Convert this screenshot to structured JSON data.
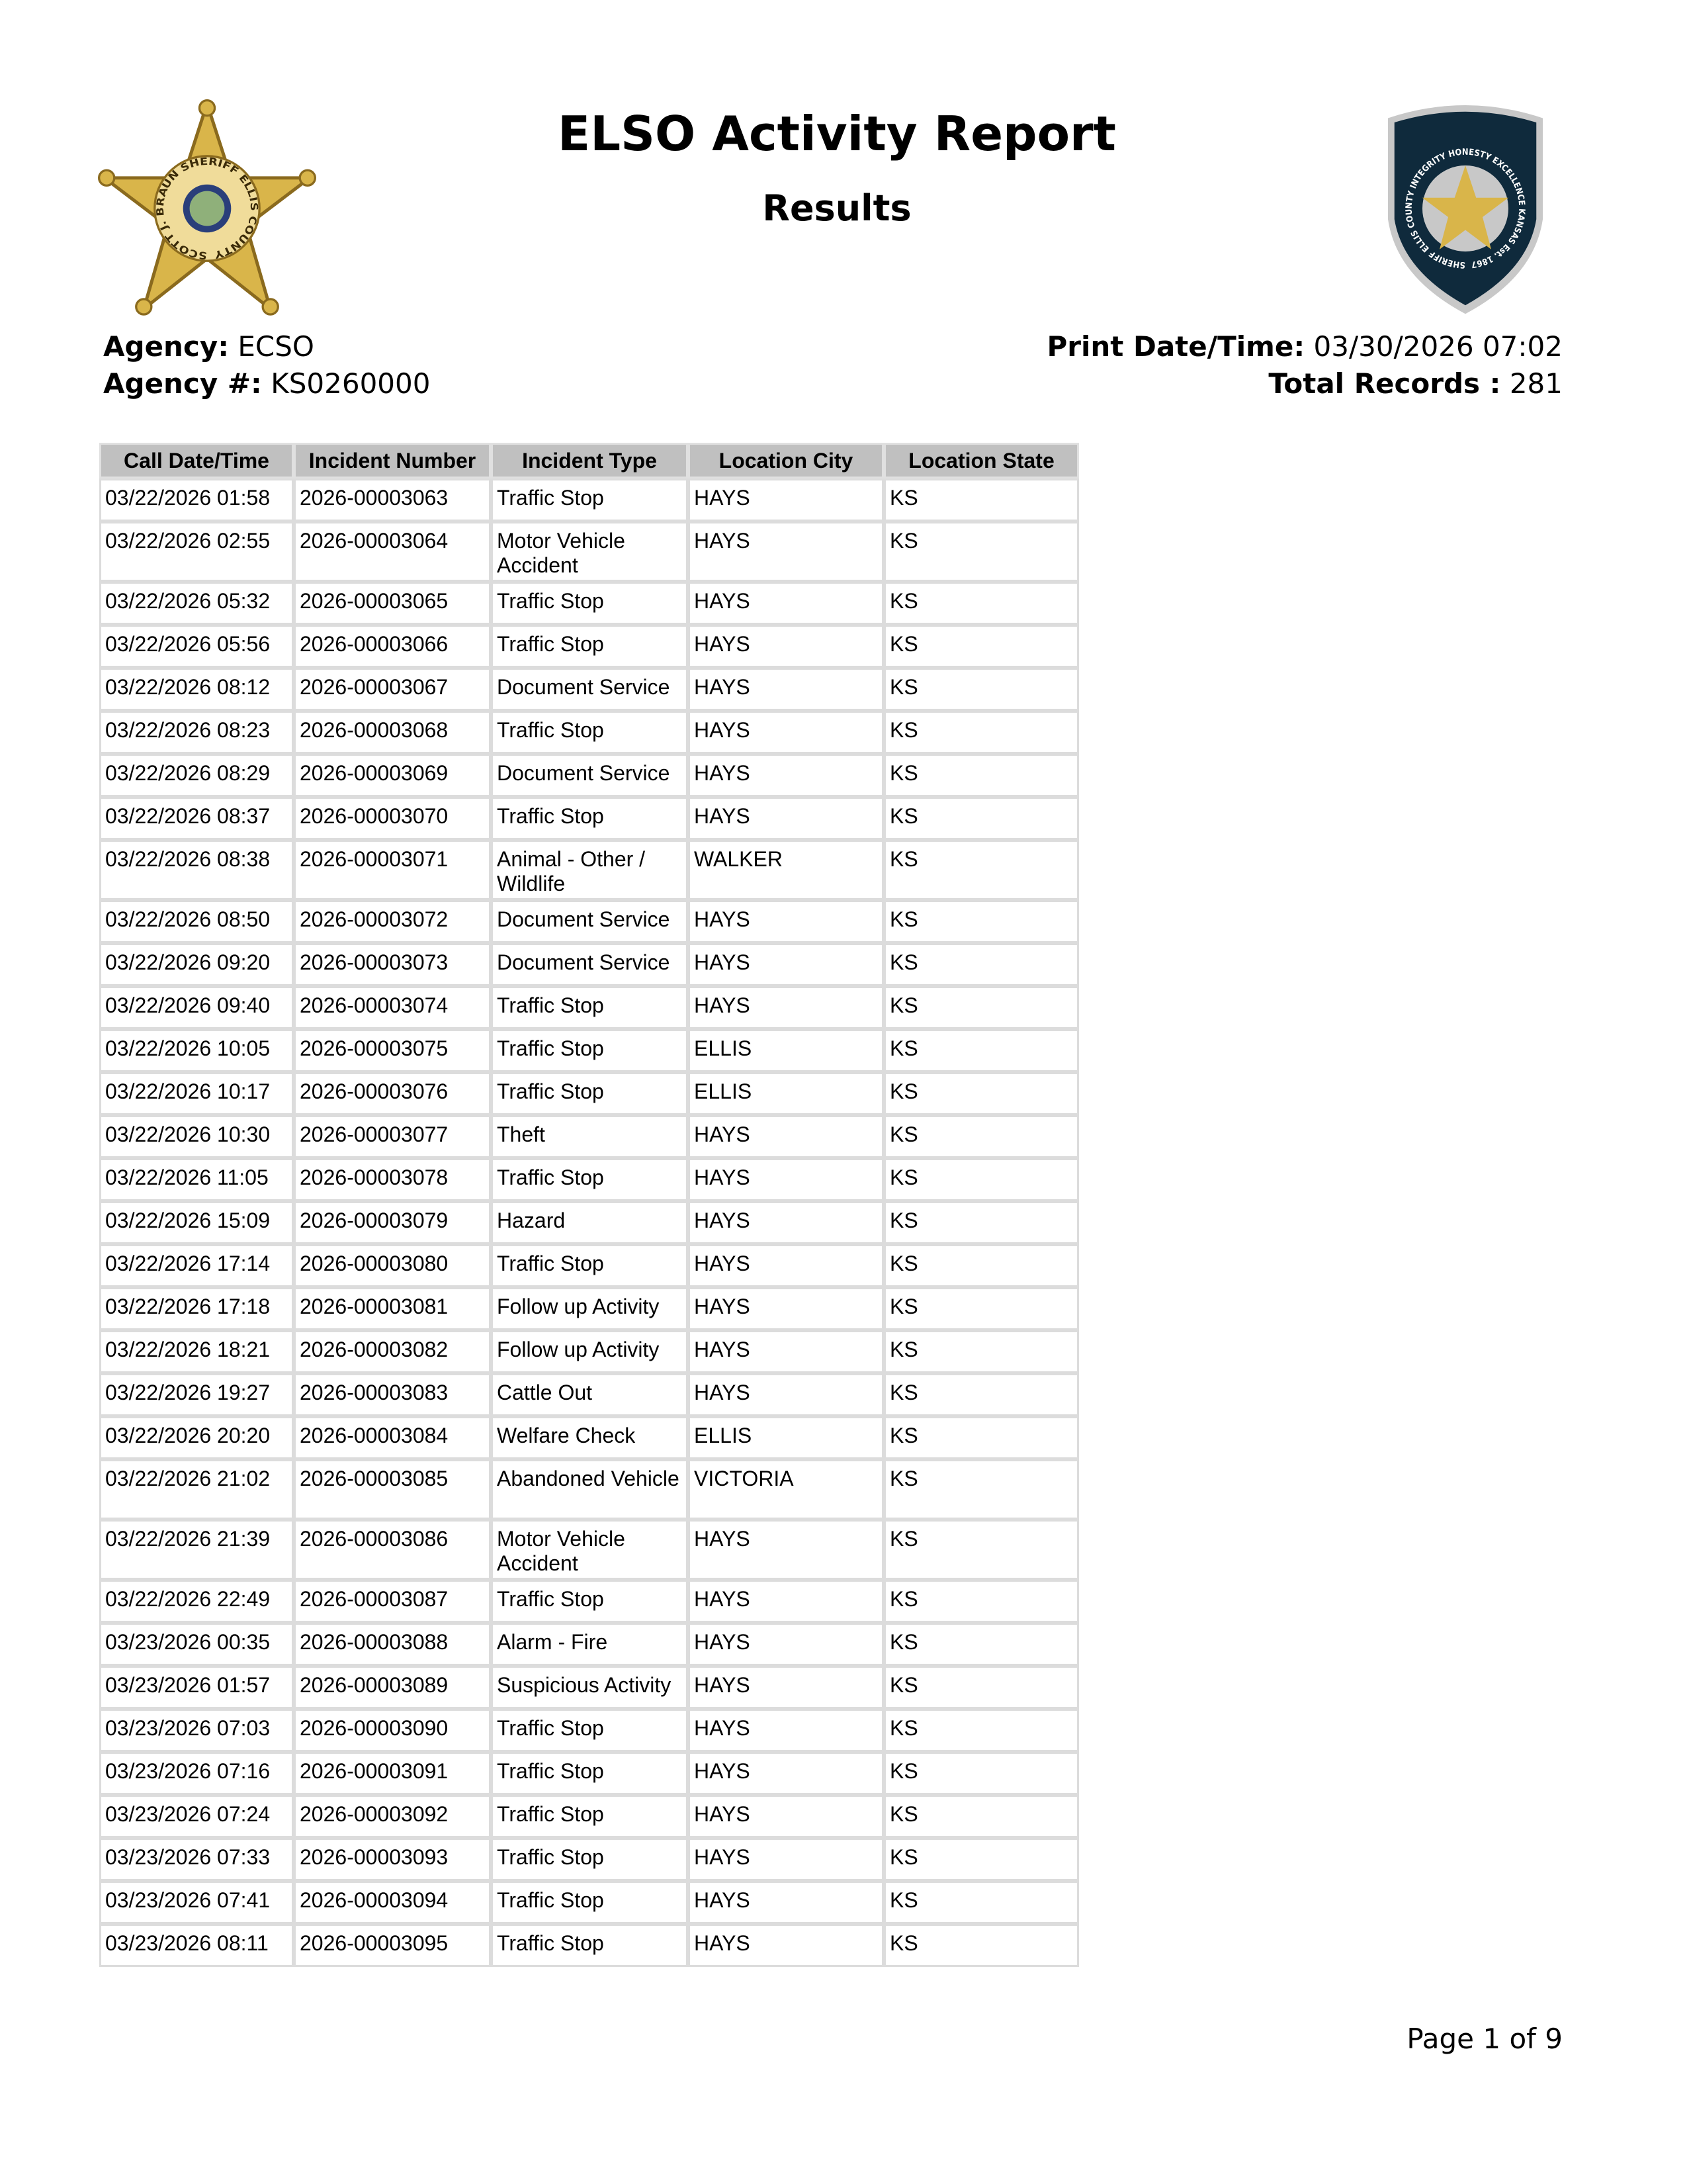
{
  "header": {
    "title": "ELSO Activity Report",
    "subtitle": "Results",
    "left_logo_text": "SCOTT J. BRAUN SHERIFF ELLIS COUNTY",
    "right_logo_text": "SHERIFF ELLIS COUNTY INTEGRITY HONESTY EXCELLENCE KANSAS Est. 1867"
  },
  "meta": {
    "agency_label": "Agency:",
    "agency_value": "ECSO",
    "agency_num_label": "Agency #:",
    "agency_num_value": "KS0260000",
    "print_label": "Print Date/Time:",
    "print_value": "03/30/2026 07:02",
    "total_label": "Total Records :",
    "total_value": "281"
  },
  "colors": {
    "header_bg": "#c0c0c0",
    "badge_navy": "#0f2a3c",
    "badge_gold": "#d9b54a"
  },
  "table": {
    "columns": [
      "Call Date/Time",
      "Incident Number",
      "Incident Type",
      "Location City",
      "Location State"
    ],
    "rows": [
      [
        "03/22/2026 01:58",
        "2026-00003063",
        "Traffic Stop",
        "HAYS",
        "KS"
      ],
      [
        "03/22/2026 02:55",
        "2026-00003064",
        "Motor Vehicle Accident",
        "HAYS",
        "KS"
      ],
      [
        "03/22/2026 05:32",
        "2026-00003065",
        "Traffic Stop",
        "HAYS",
        "KS"
      ],
      [
        "03/22/2026 05:56",
        "2026-00003066",
        "Traffic Stop",
        "HAYS",
        "KS"
      ],
      [
        "03/22/2026 08:12",
        "2026-00003067",
        "Document Service",
        "HAYS",
        "KS"
      ],
      [
        "03/22/2026 08:23",
        "2026-00003068",
        "Traffic Stop",
        "HAYS",
        "KS"
      ],
      [
        "03/22/2026 08:29",
        "2026-00003069",
        "Document Service",
        "HAYS",
        "KS"
      ],
      [
        "03/22/2026 08:37",
        "2026-00003070",
        "Traffic Stop",
        "HAYS",
        "KS"
      ],
      [
        "03/22/2026 08:38",
        "2026-00003071",
        "Animal - Other / Wildlife",
        "WALKER",
        "KS"
      ],
      [
        "03/22/2026 08:50",
        "2026-00003072",
        "Document Service",
        "HAYS",
        "KS"
      ],
      [
        "03/22/2026 09:20",
        "2026-00003073",
        "Document Service",
        "HAYS",
        "KS"
      ],
      [
        "03/22/2026 09:40",
        "2026-00003074",
        "Traffic Stop",
        "HAYS",
        "KS"
      ],
      [
        "03/22/2026 10:05",
        "2026-00003075",
        "Traffic Stop",
        "ELLIS",
        "KS"
      ],
      [
        "03/22/2026 10:17",
        "2026-00003076",
        "Traffic Stop",
        "ELLIS",
        "KS"
      ],
      [
        "03/22/2026 10:30",
        "2026-00003077",
        "Theft",
        "HAYS",
        "KS"
      ],
      [
        "03/22/2026 11:05",
        "2026-00003078",
        "Traffic Stop",
        "HAYS",
        "KS"
      ],
      [
        "03/22/2026 15:09",
        "2026-00003079",
        "Hazard",
        "HAYS",
        "KS"
      ],
      [
        "03/22/2026 17:14",
        "2026-00003080",
        "Traffic Stop",
        "HAYS",
        "KS"
      ],
      [
        "03/22/2026 17:18",
        "2026-00003081",
        "Follow up Activity",
        "HAYS",
        "KS"
      ],
      [
        "03/22/2026 18:21",
        "2026-00003082",
        "Follow up Activity",
        "HAYS",
        "KS"
      ],
      [
        "03/22/2026 19:27",
        "2026-00003083",
        "Cattle Out",
        "HAYS",
        "KS"
      ],
      [
        "03/22/2026 20:20",
        "2026-00003084",
        "Welfare Check",
        "ELLIS",
        "KS"
      ],
      [
        "03/22/2026 21:02",
        "2026-00003085",
        "Abandoned Vehicle",
        "VICTORIA",
        "KS"
      ],
      [
        "03/22/2026 21:39",
        "2026-00003086",
        "Motor Vehicle Accident",
        "HAYS",
        "KS"
      ],
      [
        "03/22/2026 22:49",
        "2026-00003087",
        "Traffic Stop",
        "HAYS",
        "KS"
      ],
      [
        "03/23/2026 00:35",
        "2026-00003088",
        "Alarm - Fire",
        "HAYS",
        "KS"
      ],
      [
        "03/23/2026 01:57",
        "2026-00003089",
        "Suspicious Activity",
        "HAYS",
        "KS"
      ],
      [
        "03/23/2026 07:03",
        "2026-00003090",
        "Traffic Stop",
        "HAYS",
        "KS"
      ],
      [
        "03/23/2026 07:16",
        "2026-00003091",
        "Traffic Stop",
        "HAYS",
        "KS"
      ],
      [
        "03/23/2026 07:24",
        "2026-00003092",
        "Traffic Stop",
        "HAYS",
        "KS"
      ],
      [
        "03/23/2026 07:33",
        "2026-00003093",
        "Traffic Stop",
        "HAYS",
        "KS"
      ],
      [
        "03/23/2026 07:41",
        "2026-00003094",
        "Traffic Stop",
        "HAYS",
        "KS"
      ],
      [
        "03/23/2026 08:11",
        "2026-00003095",
        "Traffic Stop",
        "HAYS",
        "KS"
      ]
    ]
  },
  "footer": {
    "page": "Page 1 of 9"
  }
}
